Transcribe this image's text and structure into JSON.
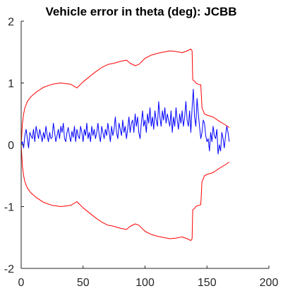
{
  "chart_data": {
    "type": "line",
    "title": "Vehicle error in theta (deg): JCBB",
    "xlabel": "",
    "ylabel": "",
    "xlim": [
      0,
      200
    ],
    "ylim": [
      -2,
      2
    ],
    "xticks": [
      0,
      50,
      100,
      150,
      200
    ],
    "xtick_labels": [
      "0",
      "50",
      "100",
      "150",
      "200"
    ],
    "yticks": [
      2,
      1,
      0,
      -1,
      -2
    ],
    "ytick_labels": [
      "2",
      "1",
      "0",
      "-1",
      "-2"
    ],
    "grid": false,
    "series": [
      {
        "color": "#ff0000",
        "role": "upper-bound",
        "x": [
          0,
          1,
          2,
          3,
          5,
          8,
          12,
          18,
          25,
          32,
          40,
          45,
          50,
          55,
          60,
          65,
          70,
          75,
          80,
          85,
          88,
          92,
          95,
          100,
          105,
          110,
          115,
          120,
          125,
          130,
          134,
          137,
          138,
          138.5,
          140,
          141,
          142,
          143,
          145,
          146,
          148,
          150,
          155,
          160,
          165,
          168
        ],
        "y": [
          0.0,
          0.35,
          0.5,
          0.6,
          0.7,
          0.78,
          0.85,
          0.93,
          0.98,
          1.0,
          0.98,
          0.92,
          1.02,
          1.1,
          1.18,
          1.25,
          1.3,
          1.32,
          1.35,
          1.37,
          1.32,
          1.28,
          1.3,
          1.4,
          1.45,
          1.48,
          1.5,
          1.52,
          1.51,
          1.49,
          1.52,
          1.55,
          1.52,
          1.05,
          1.03,
          1.0,
          0.99,
          0.98,
          0.97,
          0.6,
          0.5,
          0.48,
          0.45,
          0.38,
          0.32,
          0.28
        ]
      },
      {
        "color": "#ff0000",
        "role": "lower-bound",
        "x": [
          0,
          1,
          2,
          3,
          5,
          8,
          12,
          18,
          25,
          32,
          40,
          45,
          50,
          55,
          60,
          65,
          70,
          75,
          80,
          85,
          88,
          92,
          95,
          100,
          105,
          110,
          115,
          120,
          125,
          130,
          134,
          137,
          138,
          138.5,
          140,
          141,
          142,
          143,
          145,
          146,
          148,
          150,
          155,
          160,
          165,
          168
        ],
        "y": [
          0.0,
          -0.35,
          -0.5,
          -0.6,
          -0.7,
          -0.78,
          -0.85,
          -0.93,
          -0.98,
          -1.0,
          -0.98,
          -0.92,
          -1.02,
          -1.1,
          -1.18,
          -1.25,
          -1.3,
          -1.32,
          -1.35,
          -1.37,
          -1.32,
          -1.28,
          -1.3,
          -1.4,
          -1.45,
          -1.48,
          -1.5,
          -1.52,
          -1.51,
          -1.49,
          -1.52,
          -1.55,
          -1.52,
          -1.05,
          -1.03,
          -1.0,
          -0.99,
          -0.98,
          -0.97,
          -0.6,
          -0.5,
          -0.48,
          -0.45,
          -0.38,
          -0.32,
          -0.28
        ]
      },
      {
        "color": "#0000ff",
        "role": "error",
        "x": [
          0,
          1,
          2,
          3,
          4,
          5,
          6,
          7,
          8,
          9,
          10,
          11,
          12,
          13,
          14,
          15,
          16,
          17,
          18,
          19,
          20,
          21,
          22,
          23,
          24,
          25,
          26,
          27,
          28,
          29,
          30,
          31,
          32,
          33,
          34,
          35,
          36,
          37,
          38,
          39,
          40,
          41,
          42,
          43,
          44,
          45,
          46,
          47,
          48,
          49,
          50,
          51,
          52,
          53,
          54,
          55,
          56,
          57,
          58,
          59,
          60,
          61,
          62,
          63,
          64,
          65,
          66,
          67,
          68,
          69,
          70,
          71,
          72,
          73,
          74,
          75,
          76,
          77,
          78,
          79,
          80,
          81,
          82,
          83,
          84,
          85,
          86,
          87,
          88,
          89,
          90,
          91,
          92,
          93,
          94,
          95,
          96,
          97,
          98,
          99,
          100,
          101,
          102,
          103,
          104,
          105,
          106,
          107,
          108,
          109,
          110,
          111,
          112,
          113,
          114,
          115,
          116,
          117,
          118,
          119,
          120,
          121,
          122,
          123,
          124,
          125,
          126,
          127,
          128,
          129,
          130,
          131,
          132,
          133,
          134,
          135,
          136,
          137,
          138,
          139,
          140,
          141,
          142,
          143,
          144,
          145,
          146,
          147,
          148,
          149,
          150,
          151,
          152,
          153,
          154,
          155,
          156,
          157,
          158,
          159,
          160,
          161,
          162,
          163,
          164,
          165,
          166,
          167,
          168
        ],
        "y": [
          0.0,
          0.05,
          -0.05,
          0.15,
          0.25,
          0.1,
          -0.05,
          0.2,
          0.15,
          0.1,
          0.25,
          0.05,
          0.3,
          0.2,
          0.1,
          0.25,
          0.15,
          0.05,
          0.2,
          0.1,
          0.3,
          0.15,
          0.05,
          0.2,
          0.1,
          0.12,
          0.35,
          0.2,
          0.05,
          0.15,
          0.25,
          0.1,
          0.3,
          0.2,
          0.35,
          0.1,
          0.05,
          0.2,
          0.28,
          0.15,
          0.05,
          0.22,
          0.12,
          0.3,
          0.05,
          0.25,
          0.15,
          0.1,
          0.3,
          0.2,
          0.05,
          0.25,
          0.15,
          0.35,
          0.1,
          0.2,
          0.05,
          0.3,
          0.15,
          0.25,
          0.1,
          0.2,
          0.35,
          0.15,
          0.05,
          0.3,
          0.2,
          0.1,
          0.25,
          0.15,
          0.35,
          0.2,
          0.05,
          0.3,
          0.15,
          0.25,
          0.45,
          0.2,
          0.1,
          0.35,
          0.25,
          0.15,
          0.4,
          0.2,
          0.3,
          0.1,
          0.25,
          0.45,
          0.2,
          0.35,
          0.4,
          0.2,
          0.5,
          0.3,
          0.45,
          0.2,
          0.1,
          0.35,
          0.55,
          0.3,
          0.4,
          0.2,
          0.5,
          0.35,
          0.6,
          0.3,
          0.45,
          0.25,
          0.55,
          0.4,
          0.3,
          0.7,
          0.45,
          0.3,
          0.55,
          0.4,
          0.6,
          0.35,
          0.5,
          0.4,
          0.3,
          0.55,
          0.2,
          0.45,
          0.3,
          0.6,
          0.4,
          0.25,
          0.5,
          0.35,
          0.55,
          0.3,
          0.45,
          0.7,
          0.4,
          0.3,
          0.55,
          0.2,
          0.6,
          0.9,
          0.45,
          0.3,
          0.75,
          0.5,
          0.3,
          0.1,
          0.2,
          0.4,
          0.35,
          0.15,
          0.05,
          0.1,
          -0.1,
          0.2,
          0.05,
          0.3,
          0.15,
          0.1,
          0.25,
          -0.15,
          0.0,
          -0.1,
          0.2,
          0.1,
          -0.05,
          0.15,
          0.3,
          0.2,
          0.05
        ]
      }
    ]
  }
}
